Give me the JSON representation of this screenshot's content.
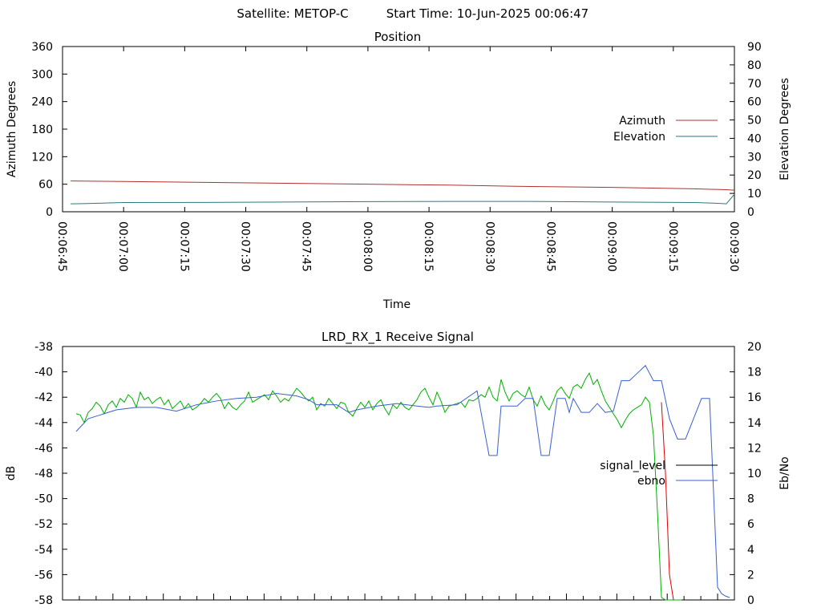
{
  "header": {
    "satellite_label": "Satellite: METOP-C",
    "start_time_label": "Start Time: 10-Jun-2025 00:06:47"
  },
  "colors": {
    "azimuth": "#b03030",
    "elevation": "#2a7a80",
    "signal_level": "#000000",
    "ebno": "#3a60d0",
    "green_series": "#00b000",
    "red_drop": "#e00000"
  },
  "chart_data": [
    {
      "type": "line",
      "title": "Position",
      "xlabel": "Time",
      "ylabel": "Azimuth Degrees",
      "y2label": "Elevation Degrees",
      "ylim": [
        0,
        360
      ],
      "y2lim": [
        0,
        90
      ],
      "yticks": [
        "0",
        "60",
        "120",
        "180",
        "240",
        "300",
        "360"
      ],
      "y2ticks": [
        "0",
        "10",
        "20",
        "30",
        "40",
        "50",
        "60",
        "70",
        "80",
        "90"
      ],
      "xticks": [
        "00:06:45",
        "00:07:00",
        "00:07:15",
        "00:07:30",
        "00:07:45",
        "00:08:00",
        "00:08:15",
        "00:08:30",
        "00:08:45",
        "00:09:00",
        "00:09:15",
        "00:09:30"
      ],
      "xlim_seconds": [
        405,
        570
      ],
      "legend_position": "right",
      "series": [
        {
          "name": "Azimuth",
          "axis": "left",
          "x_seconds": [
            407,
            420,
            440,
            460,
            480,
            500,
            520,
            540,
            560,
            568,
            570
          ],
          "values": [
            67,
            66,
            64,
            62,
            60,
            58,
            55,
            53,
            50,
            48,
            47
          ],
          "ylim_note": "left axis"
        },
        {
          "name": "Elevation",
          "axis": "right",
          "x_seconds": [
            407,
            410,
            420,
            440,
            460,
            480,
            500,
            520,
            540,
            560,
            566,
            568,
            570
          ],
          "values": [
            4.3,
            4.4,
            5.0,
            5.1,
            5.3,
            5.5,
            5.6,
            5.6,
            5.3,
            5.0,
            4.6,
            4.3,
            9.5
          ]
        }
      ]
    },
    {
      "type": "line",
      "title": "LRD_RX_1 Receive Signal",
      "xlabel": "",
      "ylabel": "dB",
      "y2label": "Eb/No",
      "ylim": [
        -58,
        -38
      ],
      "y2lim": [
        0,
        20
      ],
      "yticks": [
        "-58",
        "-56",
        "-54",
        "-52",
        "-50",
        "-48",
        "-46",
        "-44",
        "-42",
        "-40",
        "-38"
      ],
      "y2ticks": [
        "0",
        "2",
        "4",
        "6",
        "8",
        "10",
        "12",
        "14",
        "16",
        "18",
        "20"
      ],
      "xlim_index": [
        0,
        165
      ],
      "legend_position": "right",
      "series": [
        {
          "name": "signal_level",
          "axis": "left",
          "x": [
            0,
            1,
            2,
            3,
            4,
            5,
            6,
            7,
            8,
            9,
            10,
            11,
            12,
            13,
            14,
            15,
            16,
            17,
            18,
            19,
            20,
            21,
            22,
            23,
            24,
            25,
            26,
            27,
            28,
            29,
            30,
            31,
            32,
            33,
            34,
            35,
            36,
            37,
            38,
            39,
            40,
            41,
            42,
            43,
            44,
            45,
            46,
            47,
            48,
            49,
            50,
            51,
            52,
            53,
            54,
            55,
            56,
            57,
            58,
            59,
            60,
            61,
            62,
            63,
            64,
            65,
            66,
            67,
            68,
            69,
            70,
            71,
            72,
            73,
            74,
            75,
            76,
            77,
            78,
            79,
            80,
            81,
            82,
            83,
            84,
            85,
            86,
            87,
            88,
            89,
            90,
            91,
            92,
            93,
            94,
            95,
            96,
            97,
            98,
            99,
            100,
            101,
            102,
            103,
            104,
            105,
            106,
            107,
            108,
            109,
            110,
            111,
            112,
            113,
            114,
            115,
            116,
            117,
            118,
            119,
            120,
            121,
            122,
            123,
            124,
            125,
            126,
            127,
            128,
            129,
            130,
            131,
            132,
            133,
            134,
            135,
            136,
            137,
            138,
            139,
            140,
            141,
            142,
            143,
            144,
            145,
            146,
            147,
            148,
            149,
            150,
            151
          ],
          "values": [
            -43.3,
            -43.4,
            -44.0,
            -43.2,
            -42.9,
            -42.4,
            -42.7,
            -43.3,
            -42.6,
            -42.3,
            -42.8,
            -42.1,
            -42.4,
            -41.8,
            -42.1,
            -42.8,
            -41.6,
            -42.2,
            -42.0,
            -42.5,
            -42.2,
            -42.0,
            -42.6,
            -42.2,
            -42.9,
            -42.6,
            -42.3,
            -42.9,
            -42.5,
            -43.0,
            -42.8,
            -42.5,
            -42.1,
            -42.4,
            -42.0,
            -41.7,
            -42.1,
            -42.9,
            -42.4,
            -42.8,
            -43.0,
            -42.6,
            -42.3,
            -41.6,
            -42.4,
            -42.2,
            -42.0,
            -41.8,
            -42.2,
            -41.5,
            -41.9,
            -42.4,
            -42.1,
            -42.3,
            -41.8,
            -41.3,
            -41.6,
            -42.0,
            -42.3,
            -42.0,
            -43.0,
            -42.5,
            -42.7,
            -42.1,
            -42.5,
            -42.9,
            -42.4,
            -42.5,
            -43.2,
            -43.5,
            -42.9,
            -42.4,
            -42.8,
            -42.3,
            -43.0,
            -42.5,
            -42.2,
            -42.9,
            -43.4,
            -42.6,
            -42.9,
            -42.4,
            -42.8,
            -43.0,
            -42.6,
            -42.2,
            -41.6,
            -41.3,
            -42.0,
            -42.6,
            -41.6,
            -42.3,
            -43.2,
            -42.7,
            -42.6,
            -42.5,
            -42.4,
            -42.8,
            -42.2,
            -42.3,
            -42.1,
            -41.8,
            -42.0,
            -41.2,
            -42.0,
            -42.3,
            -40.6,
            -41.6,
            -42.3,
            -41.7,
            -41.5,
            -41.8,
            -42.0,
            -41.2,
            -42.2,
            -42.7,
            -41.9,
            -42.6,
            -43.0,
            -42.3,
            -41.5,
            -41.2,
            -41.7,
            -42.1,
            -41.2,
            -41.0,
            -41.3,
            -40.6,
            -40.1,
            -41.0,
            -40.6,
            -41.5,
            -42.3,
            -42.8,
            -43.3,
            -43.8,
            -44.4,
            -43.8,
            -43.3,
            -43.0,
            -42.8,
            -42.6,
            -42.0,
            -42.4,
            -45.0,
            -51.0,
            -57.8,
            -58.0,
            -58.0,
            -58.0,
            -58.0,
            -58.0
          ]
        },
        {
          "name": "ebno",
          "axis": "right",
          "x": [
            0,
            3,
            6,
            10,
            15,
            20,
            25,
            30,
            35,
            40,
            45,
            50,
            55,
            58,
            60,
            65,
            68,
            70,
            75,
            80,
            85,
            88,
            90,
            95,
            100,
            103,
            105,
            106,
            108,
            110,
            112,
            114,
            116,
            118,
            120,
            122,
            123,
            124,
            126,
            128,
            130,
            132,
            134,
            136,
            138,
            140,
            142,
            144,
            146,
            148,
            150,
            152,
            154,
            156,
            158,
            160,
            161,
            162,
            163
          ],
          "values": [
            13.3,
            14.3,
            14.6,
            15.0,
            15.2,
            15.2,
            14.9,
            15.4,
            15.7,
            15.9,
            16.0,
            16.3,
            16.1,
            15.8,
            15.4,
            15.4,
            14.8,
            15.0,
            15.3,
            15.5,
            15.3,
            15.2,
            15.3,
            15.4,
            16.5,
            11.4,
            11.4,
            15.3,
            15.3,
            15.3,
            15.9,
            15.9,
            11.4,
            11.4,
            15.9,
            15.9,
            14.8,
            15.9,
            14.8,
            14.8,
            15.5,
            14.8,
            14.9,
            17.3,
            17.3,
            17.9,
            18.5,
            17.3,
            17.3,
            14.3,
            12.7,
            12.7,
            14.3,
            15.9,
            15.9,
            1.0,
            0.5,
            0.3,
            0.2
          ]
        }
      ]
    }
  ]
}
